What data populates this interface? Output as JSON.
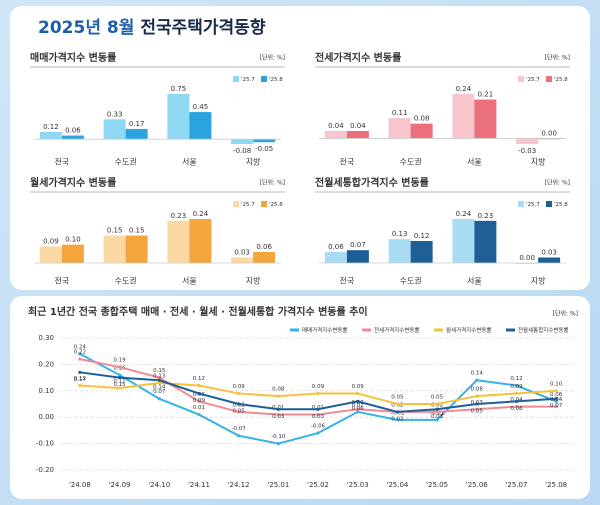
{
  "header": {
    "title_accent": "2025년 8월",
    "title": "전국주택가격동향"
  },
  "chart_data": [
    {
      "type": "bar",
      "title": "매매가격지수 변동률",
      "unit": "[단위: %]",
      "categories": [
        "전국",
        "수도권",
        "서울",
        "지방"
      ],
      "series": [
        {
          "name": "'25.7",
          "color": "#8fd8f4",
          "values": [
            0.12,
            0.33,
            0.75,
            -0.08
          ],
          "value_labels": [
            "0.12",
            "0.33",
            "0.75",
            "-0.08"
          ]
        },
        {
          "name": "'25.8",
          "color": "#2aa3e0",
          "values": [
            0.06,
            0.17,
            0.45,
            -0.05
          ],
          "value_labels": [
            "0.06",
            "0.17",
            "0.45",
            "-0.05"
          ]
        }
      ]
    },
    {
      "type": "bar",
      "title": "전세가격지수 변동률",
      "unit": "[단위: %]",
      "categories": [
        "전국",
        "수도권",
        "서울",
        "지방"
      ],
      "series": [
        {
          "name": "'25.7",
          "color": "#f7c5cb",
          "values": [
            0.04,
            0.11,
            0.24,
            -0.03
          ],
          "value_labels": [
            "0.04",
            "0.11",
            "0.24",
            "-0.03"
          ]
        },
        {
          "name": "'25.8",
          "color": "#ec6f7c",
          "values": [
            0.04,
            0.08,
            0.21,
            0
          ],
          "value_labels": [
            "0.04",
            "0.08",
            "0.21",
            "0.00"
          ]
        }
      ]
    },
    {
      "type": "bar",
      "title": "월세가격지수 변동률",
      "unit": "[단위: %]",
      "categories": [
        "전국",
        "수도권",
        "서울",
        "지방"
      ],
      "series": [
        {
          "name": "'25.7",
          "color": "#fbd9a5",
          "values": [
            0.09,
            0.15,
            0.23,
            0.03
          ],
          "value_labels": [
            "0.09",
            "0.15",
            "0.23",
            "0.03"
          ]
        },
        {
          "name": "'25.8",
          "color": "#f4a53c",
          "values": [
            0.1,
            0.15,
            0.24,
            0.06
          ],
          "value_labels": [
            "0.10",
            "0.15",
            "0.24",
            "0.06"
          ]
        }
      ]
    },
    {
      "type": "bar",
      "title": "전월세통합가격지수 변동률",
      "unit": "[단위: %]",
      "categories": [
        "전국",
        "수도권",
        "서울",
        "지방"
      ],
      "series": [
        {
          "name": "'25.7",
          "color": "#a9dcf2",
          "values": [
            0.06,
            0.13,
            0.24,
            0
          ],
          "value_labels": [
            "0.06",
            "0.13",
            "0.24",
            "0.00"
          ]
        },
        {
          "name": "'25.8",
          "color": "#1d5f96",
          "values": [
            0.07,
            0.12,
            0.23,
            0.03
          ],
          "value_labels": [
            "0.07",
            "0.12",
            "0.23",
            "0.03"
          ]
        }
      ]
    },
    {
      "type": "line",
      "title": "최근 1년간 전국 종합주택 매매 · 전세 · 월세 · 전월세통합 가격지수 변동률 추이",
      "unit": "[단위: %]",
      "categories": [
        "'24.08",
        "'24.09",
        "'24.10",
        "'24.11",
        "'24.12",
        "'25.01",
        "'25.02",
        "'25.03",
        "'25.04",
        "'25.05",
        "'25.06",
        "'25.07",
        "'25.08"
      ],
      "ylim": [
        -0.2,
        0.3
      ],
      "yticks": [
        {
          "value": 0.3,
          "label": "0.30"
        },
        {
          "value": 0.2,
          "label": "0.20"
        },
        {
          "value": 0.1,
          "label": "0.10"
        },
        {
          "value": 0,
          "label": "0.00"
        },
        {
          "value": -0.1,
          "label": "-0.10"
        },
        {
          "value": -0.2,
          "label": "-0.20"
        }
      ],
      "grid": true,
      "series": [
        {
          "name": "매매가격지수변동률",
          "color": "#36b3e8",
          "values": [
            0.24,
            0.16,
            0.07,
            0.01,
            -0.07,
            -0.1,
            -0.06,
            0.02,
            -0.01,
            -0.01,
            0.14,
            0.12,
            0.06
          ],
          "value_labels": [
            "0.24",
            "0.16",
            "0.07",
            "0.01",
            "-0.07",
            "-0.10",
            "-0.06",
            "0.02",
            "-0.01",
            "-0.01",
            "0.14",
            "0.12",
            "0.06"
          ]
        },
        {
          "name": "전세가격지수변동률",
          "color": "#f08a96",
          "values": [
            0.22,
            0.19,
            0.15,
            0.06,
            0.02,
            0.01,
            0.01,
            0.03,
            0.02,
            0.02,
            0.03,
            0.04,
            0.04
          ],
          "value_labels": [
            "0.22",
            "0.19",
            "0.15",
            "0.06",
            "0.02",
            "0.01",
            "0.01",
            "0.03",
            "0.02",
            "0.02",
            "0.03",
            "0.04",
            "0.04"
          ]
        },
        {
          "name": "월세가격지수변동률",
          "color": "#f5c23e",
          "values": [
            0.12,
            0.11,
            0.13,
            0.12,
            0.09,
            0.08,
            0.09,
            0.09,
            0.05,
            0.05,
            0.08,
            0.09,
            0.1
          ],
          "value_labels": [
            "0.12",
            "0.11",
            "0.13",
            "0.12",
            "0.09",
            "0.08",
            "0.09",
            "0.09",
            "0.05",
            "0.05",
            "0.08",
            "0.09",
            "0.10"
          ]
        },
        {
          "name": "전월세통합지수변동률",
          "color": "#1d5f96",
          "values": [
            0.17,
            0.15,
            0.14,
            0.09,
            0.05,
            0.03,
            0.03,
            0.06,
            0.02,
            0.03,
            0.05,
            0.06,
            0.07
          ],
          "value_labels": [
            "0.17",
            "0.15",
            "0.14",
            "0.09",
            "0.05",
            "0.03",
            "0.03",
            "0.06",
            "0.02",
            "0.03",
            "0.05",
            "0.06",
            "0.07"
          ]
        }
      ]
    }
  ]
}
